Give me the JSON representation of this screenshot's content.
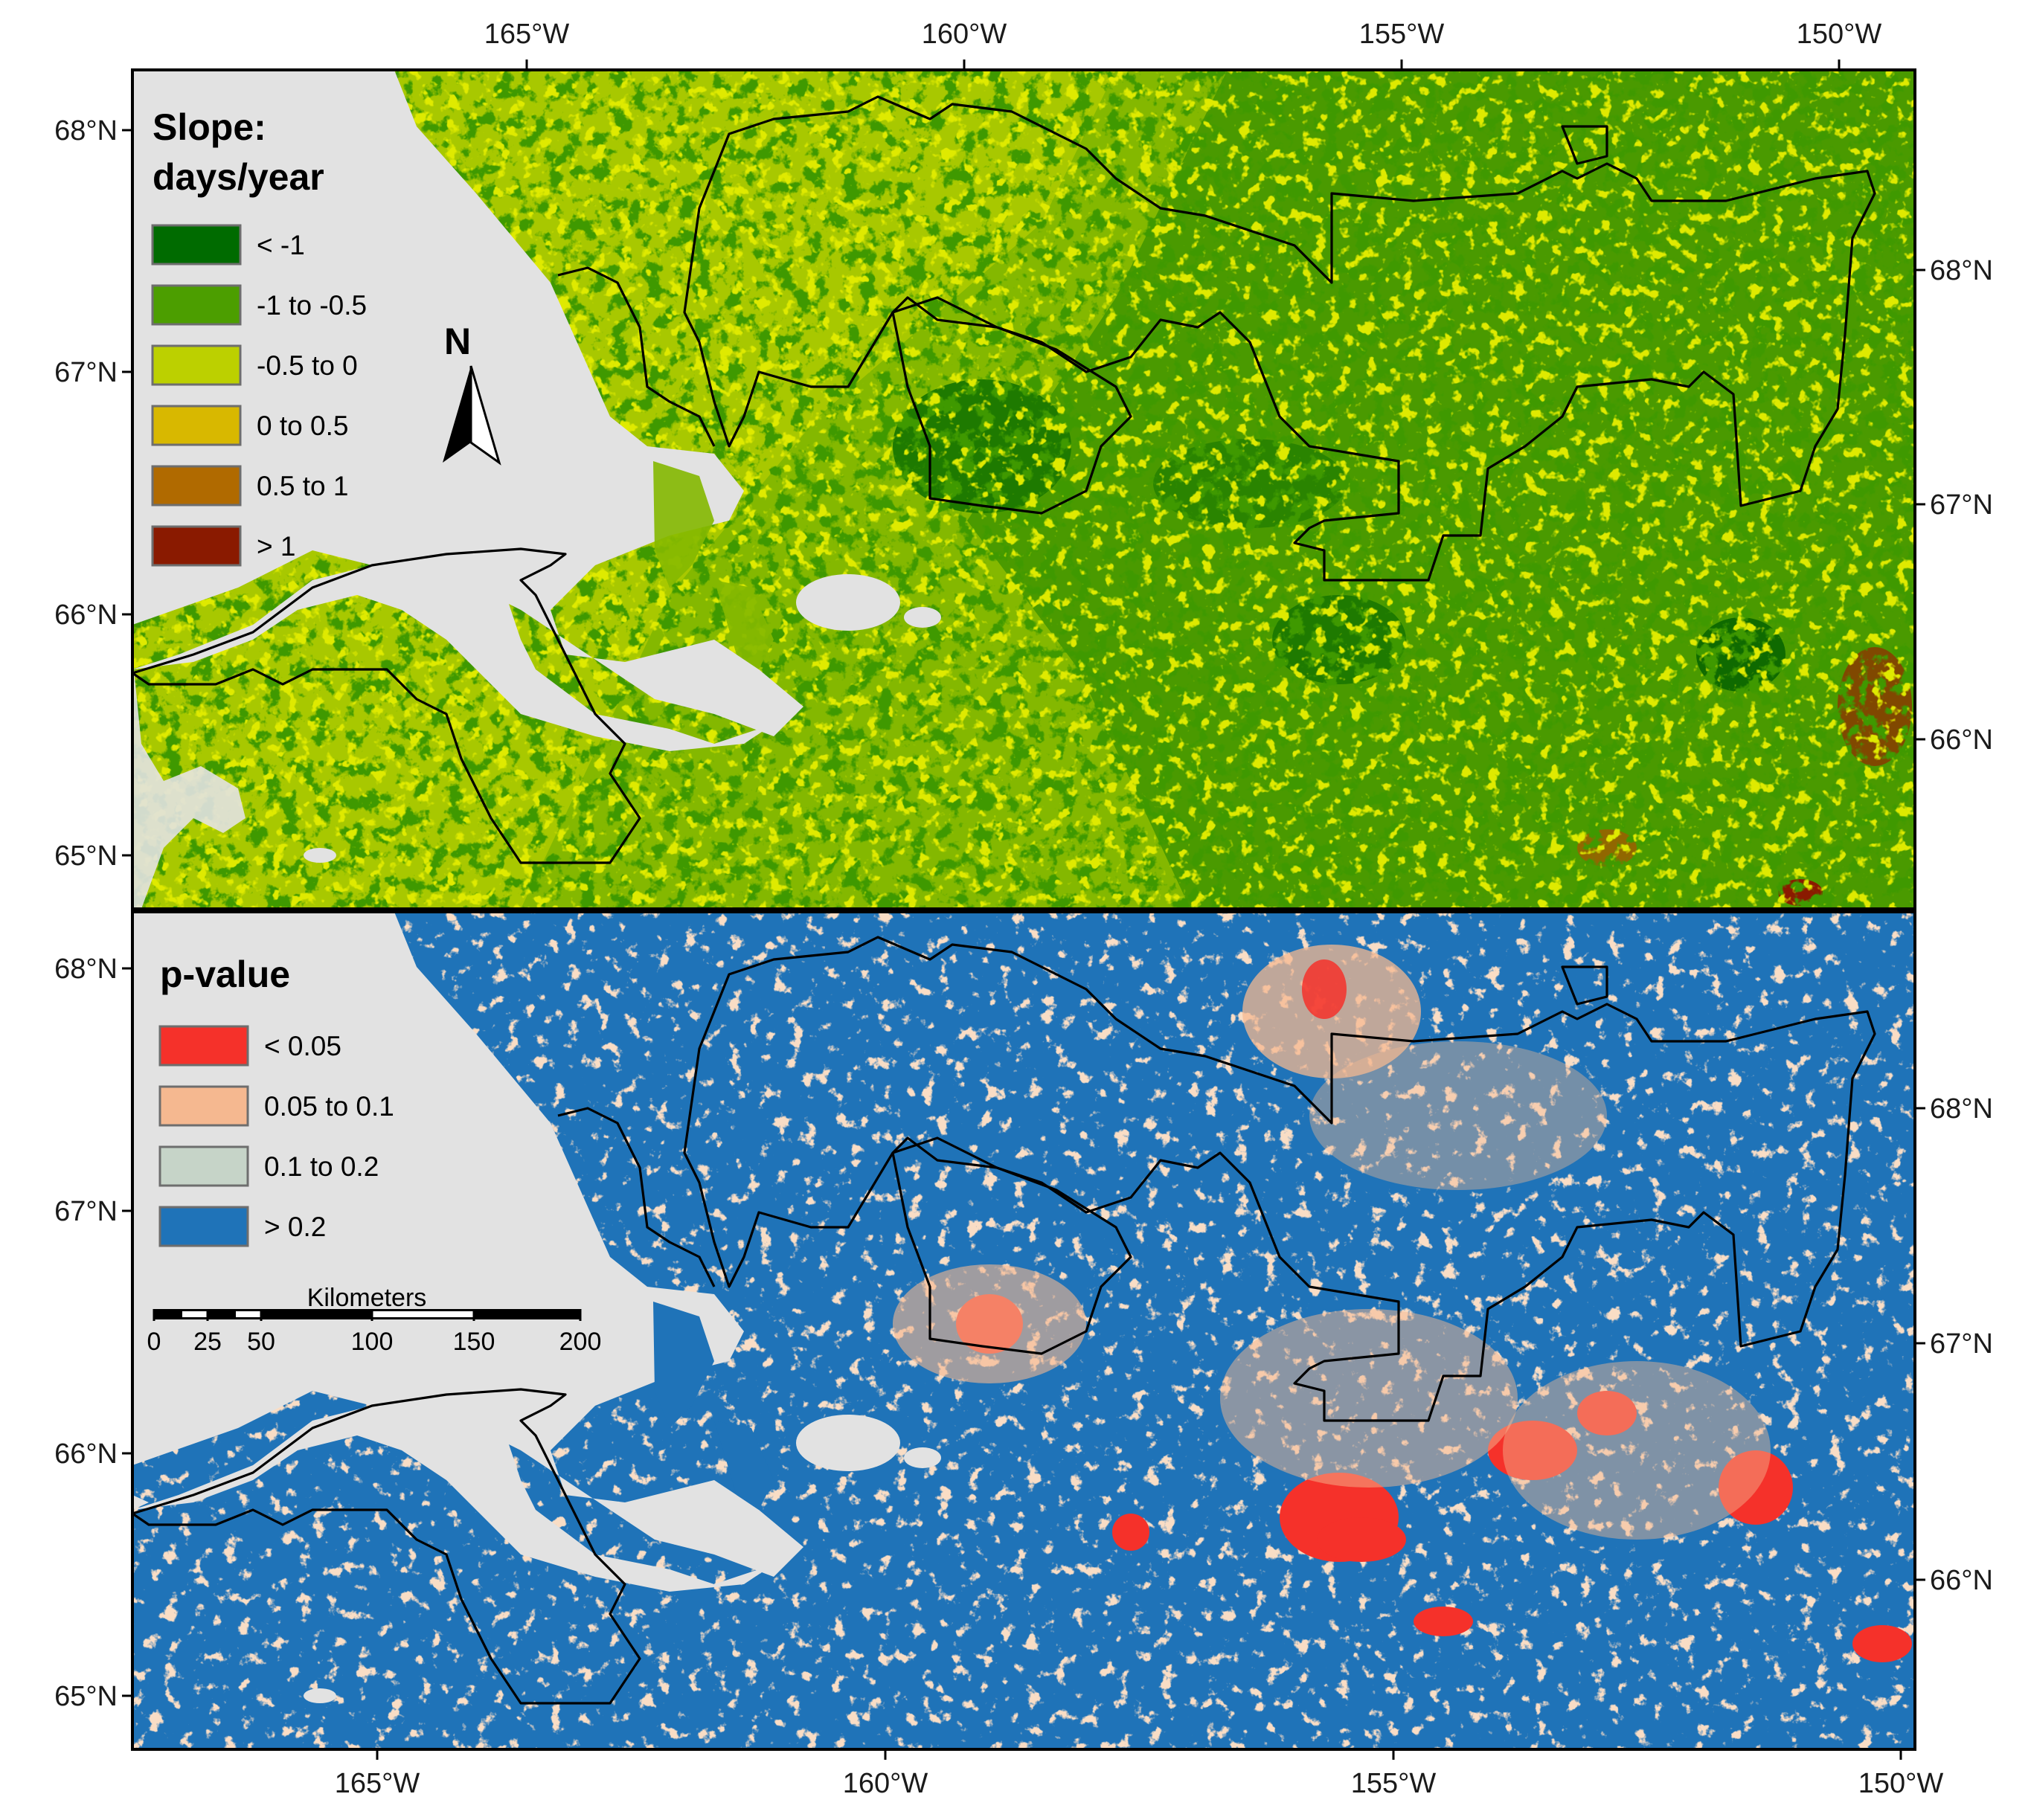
{
  "axes": {
    "top_longitude_labels": [
      "165°W",
      "160°W",
      "155°W",
      "150°W"
    ],
    "bottom_longitude_labels": [
      "165°W",
      "160°W",
      "155°W",
      "150°W"
    ],
    "left_latitude_labels": [
      "68°N",
      "67°N",
      "66°N",
      "65°N"
    ],
    "right_latitude_labels": [
      "68°N",
      "67°N",
      "66°N"
    ]
  },
  "top_map": {
    "legend_title_line1": "Slope:",
    "legend_title_line2": "days/year",
    "legend": [
      {
        "label": "< -1",
        "color": "#006b00"
      },
      {
        "label": "-1 to -0.5",
        "color": "#4c9e00"
      },
      {
        "label": "-0.5 to 0",
        "color": "#bcd000"
      },
      {
        "label": "0 to 0.5",
        "color": "#d8b800"
      },
      {
        "label": "0.5 to 1",
        "color": "#b06a00"
      },
      {
        "label": "> 1",
        "color": "#8a1a00"
      }
    ],
    "north_label": "N"
  },
  "bottom_map": {
    "legend_title": "p-value",
    "legend": [
      {
        "label": "< 0.05",
        "color": "#f5312a"
      },
      {
        "label": "0.05 to 0.1",
        "color": "#f5b890"
      },
      {
        "label": "0.1 to 0.2",
        "color": "#c6d4c8"
      },
      {
        "label": "> 0.2",
        "color": "#1f73b8"
      }
    ],
    "scalebar": {
      "title": "Kilometers",
      "ticks": [
        "0",
        "25",
        "50",
        "100",
        "150",
        "200"
      ]
    }
  },
  "colors": {
    "water": "#e2e2e2",
    "top_base": "#84b800",
    "bottom_base": "#1f73b8"
  }
}
